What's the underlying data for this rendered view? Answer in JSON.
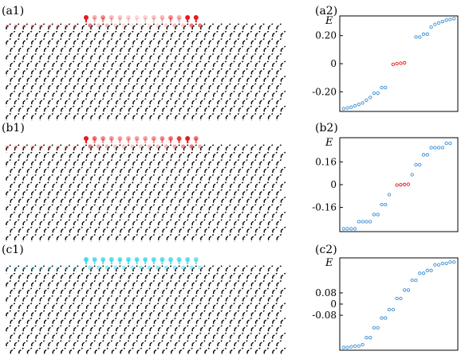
{
  "panels": [
    {
      "id": "a",
      "lattice_label": "(a1)",
      "plot_label": "(a2)",
      "highlight_color": "#e8191c",
      "edge_color": "#e8191c"
    },
    {
      "id": "b",
      "lattice_label": "(b1)",
      "plot_label": "(b2)",
      "highlight_color": "#e8191c",
      "edge_color": "#e8191c"
    },
    {
      "id": "c",
      "lattice_label": "(c1)",
      "plot_label": "(c2)",
      "highlight_color": "#22d4e8",
      "edge_color": "#22d4e8"
    }
  ],
  "chart_data": [
    {
      "type": "scatter",
      "ylabel": "E",
      "yticks": [
        "0.20",
        "0",
        "-0.20"
      ],
      "ytick_values": [
        0.2,
        0,
        -0.2
      ],
      "ylim": [
        -0.34,
        0.34
      ],
      "xlim": [
        0,
        31
      ],
      "bulk_color": "#3a8fd6",
      "edge_color": "#e8191c",
      "bulk_x": [
        1,
        2,
        3,
        4,
        5,
        6,
        7,
        8,
        9,
        10,
        11,
        12,
        20,
        21,
        22,
        23,
        24,
        25,
        26,
        27,
        28,
        29,
        30
      ],
      "bulk_y": [
        -0.32,
        -0.315,
        -0.31,
        -0.3,
        -0.29,
        -0.28,
        -0.26,
        -0.24,
        -0.21,
        -0.21,
        -0.17,
        -0.17,
        0.19,
        0.19,
        0.21,
        0.21,
        0.26,
        0.28,
        0.29,
        0.3,
        0.31,
        0.315,
        0.32
      ],
      "edge_x": [
        14,
        15,
        16,
        17
      ],
      "edge_y": [
        -0.005,
        0.0,
        0.003,
        0.006
      ]
    },
    {
      "type": "scatter",
      "ylabel": "E",
      "yticks": [
        "0.16",
        "0",
        "-0.16"
      ],
      "ytick_values": [
        0.16,
        0,
        -0.16
      ],
      "ylim": [
        -0.33,
        0.33
      ],
      "xlim": [
        0,
        31
      ],
      "bulk_color": "#3a8fd6",
      "edge_color": "#e8191c",
      "bulk_x": [
        1,
        2,
        3,
        4,
        5,
        6,
        7,
        8,
        9,
        10,
        11,
        12,
        13,
        19,
        20,
        21,
        22,
        23,
        24,
        25,
        26,
        27,
        28,
        29
      ],
      "bulk_y": [
        -0.31,
        -0.31,
        -0.31,
        -0.31,
        -0.26,
        -0.26,
        -0.26,
        -0.26,
        -0.21,
        -0.21,
        -0.14,
        -0.14,
        -0.07,
        0.07,
        0.14,
        0.14,
        0.21,
        0.21,
        0.26,
        0.26,
        0.26,
        0.26,
        0.29,
        0.29
      ],
      "edge_x": [
        15,
        16,
        17,
        18
      ],
      "edge_y": [
        -0.003,
        -0.001,
        0.001,
        0.003
      ]
    },
    {
      "type": "scatter",
      "ylabel": "E",
      "yticks": [
        "0.08",
        "0",
        "-0.08"
      ],
      "ytick_values": [
        0.08,
        0,
        -0.08
      ],
      "ylim": [
        -0.33,
        0.33
      ],
      "xlim": [
        0,
        31
      ],
      "bulk_color": "#3a8fd6",
      "bulk_x": [
        1,
        2,
        3,
        4,
        5,
        6,
        7,
        8,
        9,
        10,
        11,
        12,
        13,
        14,
        15,
        16,
        17,
        18,
        19,
        20,
        21,
        22,
        23,
        24,
        25,
        26,
        27,
        28,
        29,
        30
      ],
      "bulk_y": [
        -0.31,
        -0.31,
        -0.305,
        -0.3,
        -0.3,
        -0.29,
        -0.24,
        -0.24,
        -0.17,
        -0.17,
        -0.1,
        -0.1,
        -0.04,
        -0.04,
        0.04,
        0.04,
        0.1,
        0.1,
        0.17,
        0.17,
        0.22,
        0.22,
        0.24,
        0.24,
        0.28,
        0.28,
        0.29,
        0.29,
        0.3,
        0.3
      ],
      "edge_x": [],
      "edge_y": []
    }
  ]
}
